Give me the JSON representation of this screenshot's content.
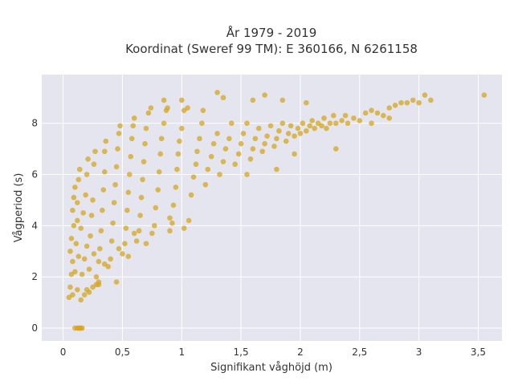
{
  "chart_data": {
    "type": "scatter",
    "title": "År 1979 - 2019",
    "subtitle": "Koordinat (Sweref 99 TM): E 360166, N 6261158",
    "xlabel": "Signifikant våghöjd (m)",
    "ylabel": "Vågperiod (s)",
    "xlim": [
      -0.18,
      3.7
    ],
    "ylim": [
      -0.5,
      9.9
    ],
    "x_ticks": [
      0,
      0.5,
      1,
      1.5,
      2,
      2.5,
      3,
      3.5
    ],
    "x_tick_labels": [
      "0",
      "0,5",
      "1",
      "1,5",
      "2",
      "2,5",
      "3",
      "3,5"
    ],
    "y_ticks": [
      0,
      2,
      4,
      6,
      8
    ],
    "y_tick_labels": [
      "0",
      "2",
      "4",
      "6",
      "8"
    ],
    "grid": true,
    "legend": "none",
    "colors": {
      "marker": "#D4A520",
      "plot_bg": "#E5E5EF",
      "grid": "#FFFFFF"
    },
    "points": [
      [
        0.05,
        1.2
      ],
      [
        0.06,
        1.6
      ],
      [
        0.07,
        2.1
      ],
      [
        0.08,
        2.6
      ],
      [
        0.06,
        3.0
      ],
      [
        0.07,
        3.5
      ],
      [
        0.09,
        4.0
      ],
      [
        0.08,
        4.6
      ],
      [
        0.09,
        5.1
      ],
      [
        0.1,
        5.5
      ],
      [
        0.08,
        1.3
      ],
      [
        0.1,
        2.2
      ],
      [
        0.11,
        3.3
      ],
      [
        0.12,
        4.2
      ],
      [
        0.12,
        4.9
      ],
      [
        0.13,
        5.8
      ],
      [
        0.14,
        6.2
      ],
      [
        0.13,
        2.8
      ],
      [
        0.15,
        3.9
      ],
      [
        0.12,
        1.5
      ],
      [
        0.15,
        1.1
      ],
      [
        0.18,
        1.3
      ],
      [
        0.2,
        1.5
      ],
      [
        0.22,
        1.4
      ],
      [
        0.25,
        1.6
      ],
      [
        0.28,
        1.7
      ],
      [
        0.3,
        1.7
      ],
      [
        0.16,
        2.1
      ],
      [
        0.18,
        2.7
      ],
      [
        0.2,
        3.2
      ],
      [
        0.17,
        4.5
      ],
      [
        0.19,
        5.2
      ],
      [
        0.2,
        6.0
      ],
      [
        0.21,
        6.6
      ],
      [
        0.22,
        2.3
      ],
      [
        0.23,
        3.6
      ],
      [
        0.24,
        4.4
      ],
      [
        0.25,
        5.0
      ],
      [
        0.26,
        6.4
      ],
      [
        0.27,
        6.9
      ],
      [
        0.28,
        2.0
      ],
      [
        0.3,
        2.6
      ],
      [
        0.31,
        3.1
      ],
      [
        0.32,
        3.8
      ],
      [
        0.33,
        4.6
      ],
      [
        0.34,
        5.4
      ],
      [
        0.35,
        6.1
      ],
      [
        0.35,
        6.9
      ],
      [
        0.36,
        7.3
      ],
      [
        0.38,
        2.4
      ],
      [
        0.4,
        2.7
      ],
      [
        0.41,
        3.4
      ],
      [
        0.42,
        4.1
      ],
      [
        0.43,
        4.9
      ],
      [
        0.44,
        5.6
      ],
      [
        0.45,
        6.3
      ],
      [
        0.46,
        7.0
      ],
      [
        0.47,
        7.6
      ],
      [
        0.48,
        7.9
      ],
      [
        0.5,
        2.9
      ],
      [
        0.52,
        3.3
      ],
      [
        0.53,
        3.9
      ],
      [
        0.54,
        4.6
      ],
      [
        0.55,
        5.3
      ],
      [
        0.56,
        6.0
      ],
      [
        0.57,
        6.7
      ],
      [
        0.58,
        7.4
      ],
      [
        0.59,
        7.9
      ],
      [
        0.6,
        8.2
      ],
      [
        0.62,
        3.4
      ],
      [
        0.64,
        3.8
      ],
      [
        0.65,
        4.4
      ],
      [
        0.66,
        5.1
      ],
      [
        0.67,
        5.8
      ],
      [
        0.68,
        6.5
      ],
      [
        0.69,
        7.2
      ],
      [
        0.7,
        7.8
      ],
      [
        0.72,
        8.4
      ],
      [
        0.74,
        8.6
      ],
      [
        0.75,
        3.7
      ],
      [
        0.77,
        4.0
      ],
      [
        0.78,
        4.7
      ],
      [
        0.8,
        5.4
      ],
      [
        0.81,
        6.1
      ],
      [
        0.82,
        6.8
      ],
      [
        0.83,
        7.4
      ],
      [
        0.85,
        8.0
      ],
      [
        0.87,
        8.5
      ],
      [
        0.88,
        8.6
      ],
      [
        0.9,
        3.8
      ],
      [
        0.92,
        4.1
      ],
      [
        0.93,
        4.8
      ],
      [
        0.95,
        5.5
      ],
      [
        0.96,
        6.2
      ],
      [
        0.97,
        6.8
      ],
      [
        0.98,
        7.3
      ],
      [
        1.0,
        7.8
      ],
      [
        1.02,
        8.5
      ],
      [
        1.05,
        8.6
      ],
      [
        1.06,
        4.2
      ],
      [
        1.08,
        5.2
      ],
      [
        1.1,
        5.9
      ],
      [
        1.12,
        6.4
      ],
      [
        1.13,
        6.9
      ],
      [
        1.15,
        7.4
      ],
      [
        1.17,
        8.0
      ],
      [
        1.18,
        8.5
      ],
      [
        1.2,
        5.6
      ],
      [
        1.22,
        6.2
      ],
      [
        1.25,
        6.7
      ],
      [
        1.27,
        7.2
      ],
      [
        1.3,
        7.6
      ],
      [
        1.32,
        6.0
      ],
      [
        1.35,
        6.5
      ],
      [
        1.37,
        7.0
      ],
      [
        1.4,
        7.4
      ],
      [
        1.42,
        8.0
      ],
      [
        1.45,
        6.4
      ],
      [
        1.48,
        6.8
      ],
      [
        1.5,
        7.2
      ],
      [
        1.52,
        7.6
      ],
      [
        1.55,
        8.0
      ],
      [
        1.58,
        6.6
      ],
      [
        1.6,
        7.0
      ],
      [
        1.62,
        7.4
      ],
      [
        1.65,
        7.8
      ],
      [
        1.68,
        6.9
      ],
      [
        1.7,
        7.2
      ],
      [
        1.72,
        7.5
      ],
      [
        1.75,
        7.9
      ],
      [
        1.78,
        7.1
      ],
      [
        1.8,
        7.4
      ],
      [
        1.82,
        7.7
      ],
      [
        1.85,
        8.0
      ],
      [
        1.88,
        7.3
      ],
      [
        1.9,
        7.6
      ],
      [
        1.92,
        7.9
      ],
      [
        1.95,
        7.5
      ],
      [
        1.98,
        7.8
      ],
      [
        2.0,
        7.6
      ],
      [
        2.02,
        8.0
      ],
      [
        2.05,
        7.7
      ],
      [
        2.08,
        7.9
      ],
      [
        2.1,
        8.1
      ],
      [
        2.12,
        7.8
      ],
      [
        2.15,
        8.0
      ],
      [
        2.18,
        7.9
      ],
      [
        2.2,
        8.2
      ],
      [
        2.22,
        7.8
      ],
      [
        2.25,
        8.0
      ],
      [
        2.28,
        8.3
      ],
      [
        2.3,
        8.0
      ],
      [
        2.35,
        8.1
      ],
      [
        2.38,
        8.3
      ],
      [
        2.4,
        8.0
      ],
      [
        2.45,
        8.2
      ],
      [
        2.5,
        8.1
      ],
      [
        2.55,
        8.4
      ],
      [
        2.6,
        8.5
      ],
      [
        2.65,
        8.4
      ],
      [
        2.7,
        8.3
      ],
      [
        2.75,
        8.6
      ],
      [
        2.8,
        8.7
      ],
      [
        2.85,
        8.8
      ],
      [
        2.9,
        8.8
      ],
      [
        2.95,
        8.9
      ],
      [
        3.0,
        8.8
      ],
      [
        3.05,
        9.1
      ],
      [
        3.1,
        8.9
      ],
      [
        3.55,
        9.1
      ],
      [
        1.3,
        9.2
      ],
      [
        1.35,
        9.0
      ],
      [
        1.6,
        8.9
      ],
      [
        1.7,
        9.1
      ],
      [
        1.85,
        8.9
      ],
      [
        2.05,
        8.8
      ],
      [
        0.85,
        8.9
      ],
      [
        1.0,
        8.9
      ],
      [
        2.3,
        7.0
      ],
      [
        1.95,
        6.8
      ],
      [
        1.55,
        6.0
      ],
      [
        1.8,
        6.2
      ],
      [
        2.6,
        8.0
      ],
      [
        2.75,
        8.2
      ],
      [
        0.12,
        0.0
      ],
      [
        0.13,
        0.0
      ],
      [
        0.14,
        0.0
      ],
      [
        0.15,
        0.0
      ],
      [
        0.1,
        0.0
      ],
      [
        0.16,
        0.0
      ],
      [
        0.45,
        1.8
      ],
      [
        0.3,
        1.8
      ],
      [
        0.9,
        4.3
      ],
      [
        0.6,
        3.7
      ],
      [
        1.02,
        3.9
      ],
      [
        0.35,
        2.5
      ],
      [
        0.47,
        3.1
      ],
      [
        0.26,
        2.9
      ],
      [
        0.55,
        2.8
      ],
      [
        0.7,
        3.3
      ]
    ]
  }
}
